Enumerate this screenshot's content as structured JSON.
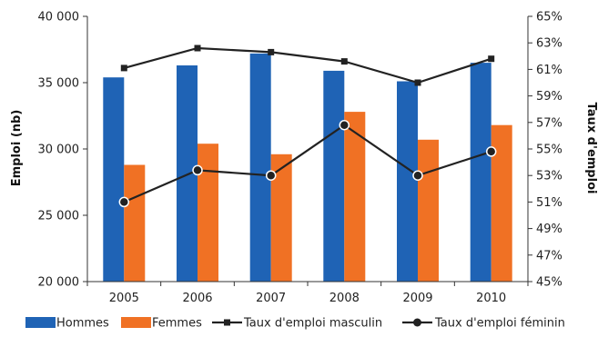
{
  "chart_data": {
    "type": "bar",
    "categories": [
      "2005",
      "2006",
      "2007",
      "2008",
      "2009",
      "2010"
    ],
    "series": [
      {
        "name": "Hommes",
        "kind": "bar",
        "axis": "left",
        "color": "#1f63b5",
        "values": [
          35400,
          36300,
          37200,
          35900,
          35100,
          36500
        ]
      },
      {
        "name": "Femmes",
        "kind": "bar",
        "axis": "left",
        "color": "#f07124",
        "values": [
          28800,
          30400,
          29600,
          32800,
          30700,
          31800
        ]
      },
      {
        "name": "Taux d'emploi masculin",
        "kind": "line",
        "marker": "square",
        "axis": "right",
        "color": "#222222",
        "values": [
          61.1,
          62.6,
          62.3,
          61.6,
          60.0,
          61.8
        ]
      },
      {
        "name": "Taux d'emploi féminin",
        "kind": "line",
        "marker": "circle",
        "axis": "right",
        "color": "#222222",
        "values": [
          51.0,
          53.4,
          53.0,
          56.8,
          53.0,
          54.8
        ]
      }
    ],
    "ylabel": "Emploi (nb)",
    "y2label": "Taux d'emploi",
    "ylim": [
      20000,
      40000
    ],
    "y2lim": [
      45,
      65
    ],
    "yticks": [
      "20 000",
      "25 000",
      "30 000",
      "35 000",
      "40 000"
    ],
    "y2ticks": [
      "45%",
      "47%",
      "49%",
      "51%",
      "53%",
      "55%",
      "57%",
      "59%",
      "61%",
      "63%",
      "65%"
    ],
    "grid": false,
    "legend_position": "bottom"
  }
}
